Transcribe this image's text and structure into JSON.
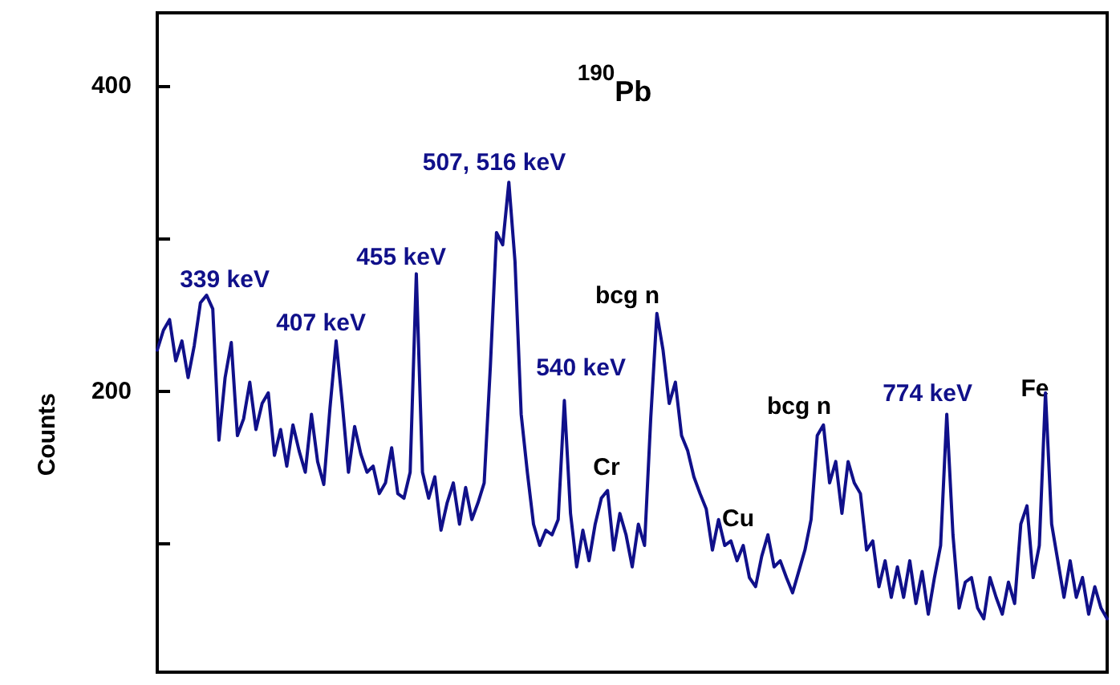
{
  "chart_data": {
    "type": "line",
    "title": "$^{190}$Pb",
    "ylabel": "Counts",
    "annotations": [
      "339 keV",
      "407 keV",
      "455 keV",
      "507, 516 keV",
      "540 keV",
      "bcg n",
      "Cr",
      "Cu",
      "bcg n",
      "774 keV",
      "Fe"
    ],
    "categories": [
      null,
      null,
      null,
      null,
      null,
      null,
      null,
      null,
      null,
      null,
      null,
      null,
      null,
      null,
      null,
      null,
      null,
      null,
      null,
      null,
      null,
      null,
      null,
      null,
      null,
      null,
      null,
      null,
      null,
      null,
      null,
      null,
      null,
      null,
      null,
      null,
      null,
      null,
      null,
      null,
      null,
      null,
      null,
      null,
      null,
      null,
      null,
      null,
      null,
      null,
      null,
      null,
      null,
      null,
      null,
      null,
      null,
      null,
      null,
      null,
      null,
      null,
      null,
      null,
      null,
      null,
      null,
      null,
      null,
      null,
      null,
      null,
      null,
      null,
      null,
      null,
      null,
      null,
      null,
      null,
      null,
      null,
      null,
      null,
      null,
      null,
      null,
      null,
      null,
      null,
      null,
      null,
      null,
      null,
      null,
      null,
      null,
      null,
      null,
      null,
      null,
      null,
      null,
      null,
      null,
      null,
      null,
      null,
      null,
      null,
      null,
      null,
      null,
      null,
      null,
      null,
      null,
      null,
      null,
      null,
      null,
      null,
      null,
      null,
      null,
      null,
      null,
      null,
      null,
      null,
      null,
      null,
      null,
      null,
      null,
      null,
      null,
      null,
      null,
      null,
      null,
      null,
      null,
      null,
      null,
      null,
      null,
      null,
      null,
      null,
      null,
      null,
      null,
      null,
      null
    ],
    "series": [
      {
        "color": "#10108a",
        "values": [
          227,
          240,
          247,
          220,
          233,
          209,
          230,
          258,
          263,
          254,
          168,
          209,
          232,
          171,
          182,
          206,
          175,
          192,
          199,
          158,
          175,
          151,
          178,
          161,
          147,
          185,
          154,
          139,
          189,
          233,
          192,
          147,
          177,
          159,
          147,
          151,
          133,
          140,
          163,
          133,
          130,
          147,
          277,
          147,
          130,
          144,
          109,
          127,
          140,
          113,
          137,
          116,
          127,
          140,
          216,
          304,
          296,
          337,
          285,
          185,
          147,
          113,
          99,
          109,
          106,
          116,
          194,
          120,
          85,
          109,
          89,
          113,
          130,
          135,
          96,
          120,
          106,
          85,
          113,
          99,
          182,
          251,
          227,
          192,
          206,
          171,
          161,
          144,
          133,
          123,
          96,
          116,
          99,
          102,
          89,
          99,
          78,
          72,
          92,
          106,
          85,
          89,
          78,
          68,
          82,
          96,
          116,
          171,
          178,
          140,
          154,
          120,
          154,
          140,
          133,
          96,
          102,
          72,
          89,
          65,
          85,
          65,
          89,
          61,
          82,
          54,
          78,
          99,
          185,
          106,
          58,
          75,
          78,
          58,
          51,
          78,
          65,
          54,
          75,
          61,
          113,
          125,
          78,
          99,
          199,
          113,
          89,
          65,
          89,
          65,
          78,
          54,
          72,
          58,
          51
        ]
      }
    ],
    "ylim": [
      16,
      448
    ],
    "yticks": [
      {
        "value": 100,
        "label": null
      },
      200,
      {
        "value": 300,
        "label": null
      },
      400
    ],
    "grid": false,
    "marker": "none",
    "line_style": "solid"
  }
}
